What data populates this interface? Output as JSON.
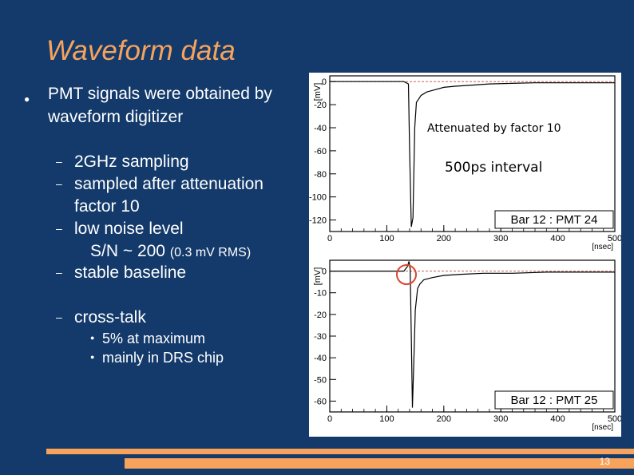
{
  "slide": {
    "title": "Waveform data",
    "page_number": "13",
    "main_bullet_line1": "PMT signals were obtained by",
    "main_bullet_line2": "waveform digitizer",
    "sub_items": {
      "sampling": "2GHz sampling",
      "attenuation_line1": "sampled after attenuation",
      "attenuation_line2": "factor 10",
      "noise_line1": "low noise level",
      "noise_line2_a": "S/N ~ 200 ",
      "noise_line2_b": "(0.3 mV RMS)",
      "baseline": "stable baseline",
      "crosstalk": "cross-talk"
    },
    "crosstalk_items": [
      "5% at maximum",
      "mainly in DRS chip"
    ]
  },
  "chart_data": [
    {
      "type": "line",
      "title": "Bar 12 : PMT 24",
      "annotations": [
        "Attenuated by factor 10",
        "500ps interval"
      ],
      "xlabel": "[nsec]",
      "ylabel": "[mV]",
      "xlim": [
        0,
        500
      ],
      "ylim": [
        -130,
        5
      ],
      "x_ticks": [
        "0",
        "100",
        "200",
        "300",
        "400",
        "500"
      ],
      "y_ticks": [
        "0",
        "-20",
        "-40",
        "-60",
        "-80",
        "-100",
        "-120"
      ],
      "series": [
        {
          "x": [
            0,
            50,
            100,
            130,
            138,
            140,
            143,
            146,
            149,
            152,
            156,
            160,
            170,
            185,
            200,
            220,
            250,
            280,
            320,
            360,
            400,
            450,
            500
          ],
          "y": [
            0,
            0,
            0,
            0,
            -2,
            -60,
            -126,
            -118,
            -40,
            -18,
            -15,
            -12,
            -9,
            -7,
            -5,
            -4,
            -3,
            -2,
            -1.5,
            -1,
            -1,
            -1,
            -1
          ]
        }
      ]
    },
    {
      "type": "line",
      "title": "Bar 12 : PMT 25",
      "xlabel": "[nsec]",
      "ylabel": "[mV]",
      "xlim": [
        0,
        500
      ],
      "ylim": [
        -65,
        5
      ],
      "x_ticks": [
        "0",
        "100",
        "200",
        "300",
        "400",
        "500"
      ],
      "y_ticks": [
        "0",
        "-10",
        "-20",
        "-30",
        "-40",
        "-50",
        "-60"
      ],
      "series": [
        {
          "x": [
            0,
            50,
            100,
            130,
            136,
            139,
            141,
            143,
            145,
            147,
            150,
            154,
            158,
            165,
            180,
            200,
            230,
            270,
            320,
            380,
            440,
            500
          ],
          "y": [
            0,
            0,
            0,
            0,
            2,
            4.5,
            1,
            -30,
            -63,
            -45,
            -18,
            -8,
            -6,
            -4,
            -3,
            -2,
            -1.5,
            -1,
            -1,
            -0.5,
            -0.5,
            -0.5
          ]
        }
      ]
    }
  ]
}
